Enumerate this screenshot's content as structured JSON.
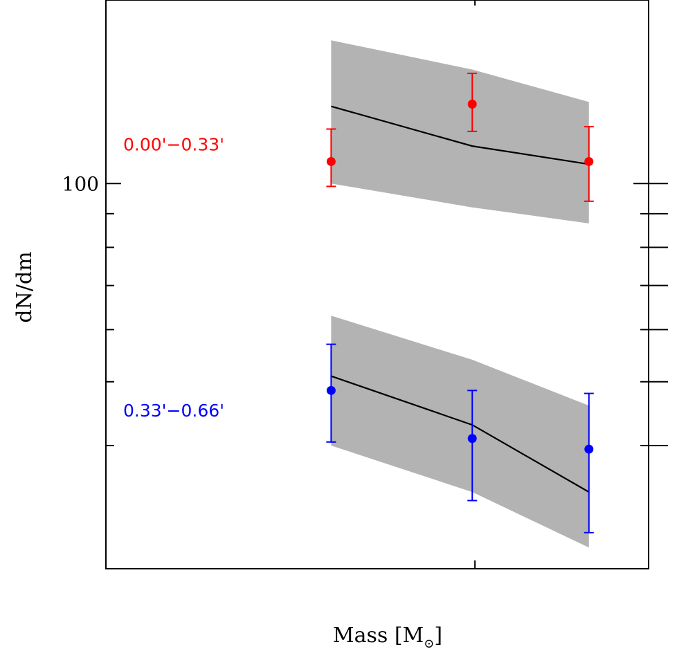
{
  "chart_data": {
    "type": "line",
    "title": "",
    "xlabel": "Mass [M",
    "xlabel_subscript": "⊙",
    "xlabel_close": "]",
    "ylabel": "dN/dm",
    "yscale": "log",
    "ylim": [
      26,
      190
    ],
    "xlim": [
      0.0,
      1.0
    ],
    "y_tick_labels": [
      {
        "value": 100,
        "label": "100"
      }
    ],
    "y_minor_ticks": [
      40,
      50,
      60,
      70,
      80,
      90,
      200
    ],
    "x": [
      0.415,
      0.675,
      0.89
    ],
    "series": [
      {
        "name": "0.00'−0.33'",
        "color": "#ff0000",
        "observed": [
          108,
          132,
          108
        ],
        "err_lo": [
          99,
          120,
          94
        ],
        "err_hi": [
          121,
          147,
          122
        ],
        "model": [
          131,
          114,
          107
        ],
        "band_lo": [
          100,
          92,
          87
        ],
        "band_hi": [
          165,
          149,
          133
        ]
      },
      {
        "name": "0.33'−0.66'",
        "color": "#0000ff",
        "observed": [
          48.5,
          41,
          39.5
        ],
        "err_lo": [
          40.5,
          33,
          29.5
        ],
        "err_hi": [
          57,
          48.5,
          48
        ],
        "model": [
          51,
          43,
          34
        ],
        "band_lo": [
          40,
          34,
          28
        ],
        "band_hi": [
          63,
          54,
          46
        ]
      }
    ],
    "band_color": "#b3b3b3",
    "model_line_color": "#000000"
  }
}
